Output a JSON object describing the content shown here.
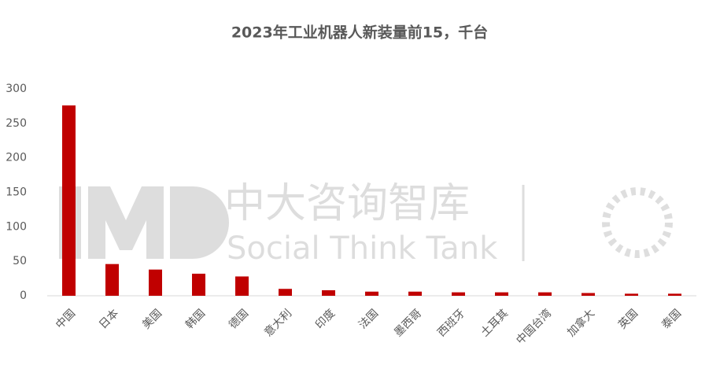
{
  "chart_data": {
    "type": "bar",
    "title": "2023年工业机器人新装量前15，千台",
    "categories": [
      "中国",
      "日本",
      "美国",
      "韩国",
      "德国",
      "意大利",
      "印度",
      "法国",
      "墨西哥",
      "西班牙",
      "土耳其",
      "中国台湾",
      "加拿大",
      "英国",
      "泰国"
    ],
    "values": [
      276,
      46,
      38,
      32,
      28,
      10,
      8,
      6,
      6,
      5,
      5,
      5,
      4,
      3,
      3
    ],
    "color": "#c00000",
    "ylim": [
      0,
      300
    ],
    "yticks": [
      0,
      50,
      100,
      150,
      200,
      250,
      300
    ],
    "grid": false
  },
  "watermark": {
    "name": "中大咨询智库",
    "tagline": "Social Think Tank"
  }
}
